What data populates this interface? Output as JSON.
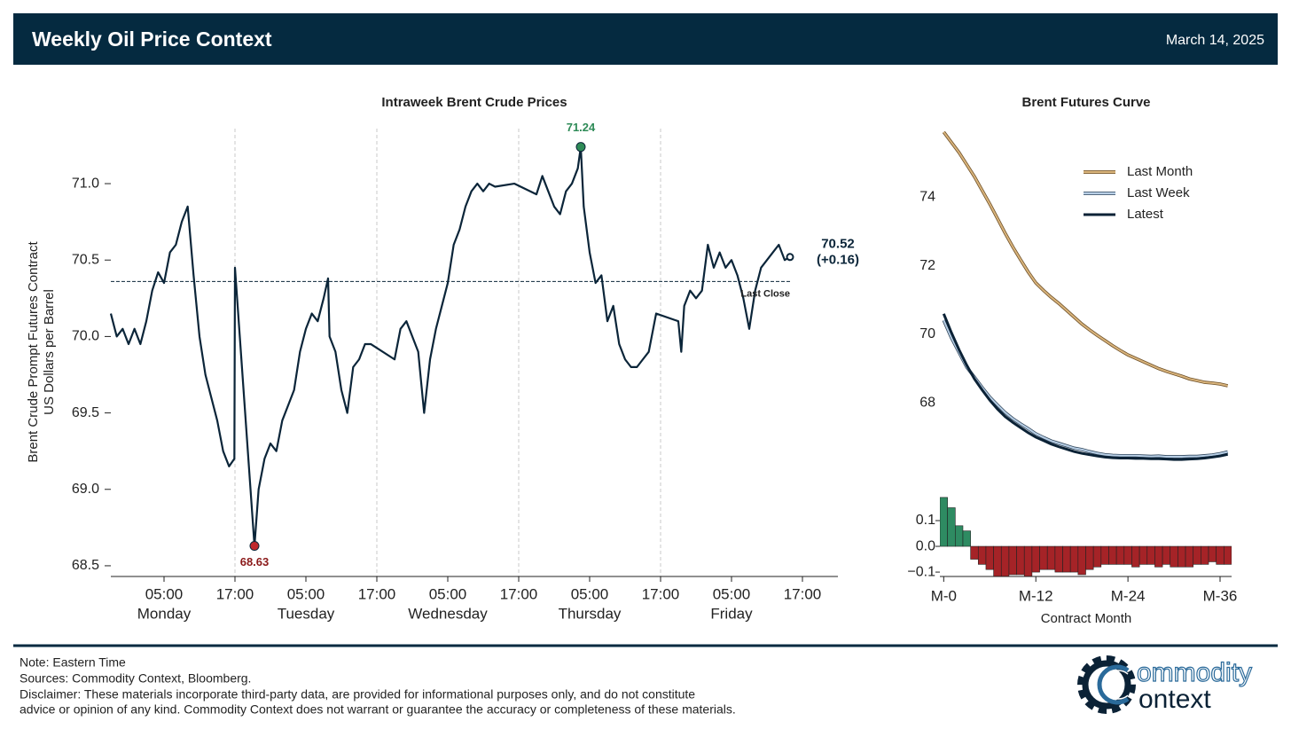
{
  "header": {
    "title": "Weekly Oil Price Context",
    "date": "March 14, 2025"
  },
  "footer": {
    "lines": [
      "Note: Eastern Time",
      "Sources: Commodity Context, Bloomberg.",
      "Disclaimer: These materials incorporate third-party data, are provided for informational purposes only, and do not constitute",
      "advice or opinion of any kind. Commodity Context does not warrant or guarantee the accuracy or completeness of these materials."
    ]
  },
  "logo": {
    "line1": "ommodity",
    "line2": "ontext"
  },
  "chart_data": [
    {
      "type": "line",
      "title": "Intraweek Brent Crude Prices",
      "ylabel": [
        "Brent Crude Prompt Futures Contract",
        "US Dollars per Barrel"
      ],
      "color": "#0b2539",
      "x": [
        -4,
        -3,
        -2,
        -1,
        0,
        1,
        2,
        3,
        4,
        5,
        6,
        7,
        8,
        9,
        10,
        11,
        12,
        13,
        14,
        15,
        16,
        16.9,
        17,
        20.3,
        21,
        22,
        23,
        24,
        25,
        26,
        27,
        28,
        29,
        30,
        31,
        32,
        32.75,
        33,
        34,
        35,
        36,
        37,
        38,
        39,
        40,
        44,
        45,
        46,
        47,
        48,
        49,
        50,
        51,
        52,
        53,
        54,
        55,
        56,
        57,
        58,
        59,
        60,
        61,
        64.25,
        68,
        69,
        70,
        71,
        72,
        73,
        74,
        75,
        75.5,
        76,
        77,
        78,
        79,
        80,
        81,
        82,
        83,
        84,
        85,
        86,
        87,
        88.25,
        92,
        92.5,
        93,
        94,
        95,
        96,
        97,
        98,
        99,
        100,
        101,
        102,
        103,
        104,
        105,
        106,
        107,
        108,
        109,
        110,
        110.9
      ],
      "values": [
        70.15,
        70.0,
        70.05,
        69.95,
        70.05,
        69.95,
        70.1,
        70.3,
        70.42,
        70.35,
        70.55,
        70.6,
        70.75,
        70.85,
        70.4,
        70.0,
        69.75,
        69.6,
        69.45,
        69.25,
        69.15,
        69.2,
        70.45,
        68.63,
        69.0,
        69.2,
        69.3,
        69.25,
        69.45,
        69.55,
        69.65,
        69.9,
        70.05,
        70.15,
        70.1,
        70.25,
        70.38,
        70.0,
        69.9,
        69.65,
        69.5,
        69.8,
        69.85,
        69.95,
        69.95,
        69.85,
        70.05,
        70.1,
        70.0,
        69.9,
        69.5,
        69.85,
        70.05,
        70.2,
        70.35,
        70.6,
        70.7,
        70.85,
        70.95,
        71.0,
        70.95,
        71.0,
        70.98,
        71.0,
        70.93,
        71.05,
        70.95,
        70.85,
        70.8,
        70.95,
        71.0,
        71.1,
        71.24,
        70.85,
        70.55,
        70.35,
        70.4,
        70.1,
        70.2,
        69.95,
        69.85,
        69.8,
        69.8,
        69.85,
        69.9,
        70.15,
        70.1,
        69.9,
        70.2,
        70.3,
        70.25,
        70.3,
        70.6,
        70.45,
        70.55,
        70.45,
        70.5,
        70.4,
        70.25,
        70.05,
        70.3,
        70.45,
        70.5,
        70.55,
        70.6,
        70.5,
        70.52
      ],
      "xlim": [
        -4,
        119
      ],
      "ylim": [
        68.43,
        71.36
      ],
      "xticks": [
        {
          "value": 5,
          "label": "05:00"
        },
        {
          "value": 17,
          "label": "17:00"
        },
        {
          "value": 29,
          "label": "05:00"
        },
        {
          "value": 41,
          "label": "17:00"
        },
        {
          "value": 53,
          "label": "05:00"
        },
        {
          "value": 65,
          "label": "17:00"
        },
        {
          "value": 77,
          "label": "05:00"
        },
        {
          "value": 89,
          "label": "17:00"
        },
        {
          "value": 101,
          "label": "05:00"
        },
        {
          "value": 113,
          "label": "17:00"
        }
      ],
      "day_labels": [
        {
          "value": 5,
          "label": "Monday"
        },
        {
          "value": 29,
          "label": "Tuesday"
        },
        {
          "value": 53,
          "label": "Wednesday"
        },
        {
          "value": 77,
          "label": "Thursday"
        },
        {
          "value": 101,
          "label": "Friday"
        }
      ],
      "yticks": [
        68.5,
        {
          "value": 69,
          "label": "69.0"
        },
        69.5,
        {
          "value": 70,
          "label": "70.0"
        },
        70.5,
        {
          "value": 71,
          "label": "71.0"
        }
      ],
      "vgrid": [
        17,
        41,
        65,
        89
      ],
      "reference": {
        "value": 70.36,
        "label": "Last Close"
      },
      "high": {
        "x": 75.5,
        "value": 71.24,
        "color": "#2e8b57"
      },
      "low": {
        "x": 20.3,
        "value": 68.63,
        "color": "#c0282d"
      },
      "last": {
        "x": 110.9,
        "value": 70.52,
        "change_label": "(+0.16)"
      }
    },
    {
      "type": "line",
      "title": "Brent Futures Curve",
      "legend": "upper right",
      "x": [
        0,
        1,
        2,
        3,
        4,
        5,
        6,
        7,
        8,
        9,
        10,
        11,
        12,
        13,
        14,
        15,
        16,
        17,
        18,
        19,
        20,
        21,
        22,
        23,
        24,
        25,
        26,
        27,
        28,
        29,
        30,
        31,
        32,
        33,
        34,
        35,
        36,
        37
      ],
      "series": [
        {
          "name": "Last Month",
          "color": "#d9b47c",
          "edgecolor": "#6e5028",
          "values": [
            75.9,
            75.6,
            75.3,
            74.95,
            74.6,
            74.2,
            73.8,
            73.38,
            72.95,
            72.55,
            72.18,
            71.82,
            71.5,
            71.28,
            71.08,
            70.9,
            70.7,
            70.5,
            70.3,
            70.13,
            69.97,
            69.82,
            69.67,
            69.53,
            69.4,
            69.3,
            69.2,
            69.1,
            69.0,
            68.92,
            68.85,
            68.78,
            68.7,
            68.65,
            68.6,
            68.58,
            68.55,
            68.5
          ]
        },
        {
          "name": "Last Week",
          "color": "#b8cfe6",
          "edgecolor": "#34495e",
          "values": [
            70.41,
            69.9,
            69.47,
            69.04,
            68.75,
            68.45,
            68.17,
            67.94,
            67.72,
            67.54,
            67.39,
            67.25,
            67.1,
            66.99,
            66.89,
            66.82,
            66.75,
            66.68,
            66.64,
            66.58,
            66.53,
            66.49,
            66.47,
            66.46,
            66.46,
            66.46,
            66.45,
            66.44,
            66.45,
            66.43,
            66.43,
            66.43,
            66.44,
            66.44,
            66.46,
            66.48,
            66.52,
            66.57
          ]
        },
        {
          "name": "Latest",
          "color": "#0b2236",
          "values": [
            70.6,
            70.05,
            69.55,
            69.1,
            68.7,
            68.38,
            68.08,
            67.82,
            67.6,
            67.43,
            67.28,
            67.13,
            67.0,
            66.9,
            66.8,
            66.72,
            66.65,
            66.58,
            66.53,
            66.49,
            66.45,
            66.42,
            66.4,
            66.39,
            66.39,
            66.38,
            66.38,
            66.37,
            66.37,
            66.36,
            66.35,
            66.35,
            66.36,
            66.37,
            66.39,
            66.42,
            66.45,
            66.5
          ]
        }
      ],
      "xlim": [
        -0.5,
        37.5
      ],
      "ylim": [
        66.3,
        76.0
      ],
      "yticks": [
        68,
        70,
        72,
        74
      ]
    },
    {
      "type": "bar",
      "positive_color": "#2e8b62",
      "negative_color": "#a52327",
      "x": [
        0,
        1,
        2,
        3,
        4,
        5,
        6,
        7,
        8,
        9,
        10,
        11,
        12,
        13,
        14,
        15,
        16,
        17,
        18,
        19,
        20,
        21,
        22,
        23,
        24,
        25,
        26,
        27,
        28,
        29,
        30,
        31,
        32,
        33,
        34,
        35,
        36,
        37
      ],
      "values": [
        0.19,
        0.15,
        0.08,
        0.06,
        -0.05,
        -0.07,
        -0.09,
        -0.12,
        -0.12,
        -0.11,
        -0.11,
        -0.12,
        -0.1,
        -0.09,
        -0.09,
        -0.1,
        -0.1,
        -0.1,
        -0.11,
        -0.09,
        -0.08,
        -0.07,
        -0.07,
        -0.07,
        -0.07,
        -0.08,
        -0.07,
        -0.07,
        -0.08,
        -0.07,
        -0.08,
        -0.08,
        -0.08,
        -0.07,
        -0.07,
        -0.06,
        -0.07,
        -0.07
      ],
      "xlim": [
        -0.5,
        37.5
      ],
      "ylim": [
        -0.117,
        0.193
      ],
      "yticks": [
        {
          "value": -0.1,
          "label": "−0.1"
        },
        {
          "value": 0,
          "label": "0.0"
        },
        0.1
      ],
      "xticks": [
        {
          "value": 0,
          "label": "M-0"
        },
        {
          "value": 12,
          "label": "M-12"
        },
        {
          "value": 24,
          "label": "M-24"
        },
        {
          "value": 36,
          "label": "M-36"
        }
      ],
      "xlabel": "Contract Month"
    }
  ]
}
